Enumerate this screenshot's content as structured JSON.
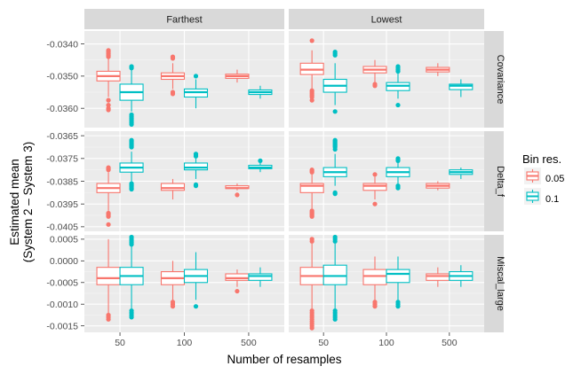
{
  "colors": {
    "bin_0_05": "#F8766D",
    "bin_0_1": "#00BFC4"
  },
  "chart_data": {
    "type": "boxplot",
    "x_title": "Number of resamples",
    "y_title_lines": [
      "Estimated mean",
      "(System 2 – System 3)"
    ],
    "categories": [
      "50",
      "100",
      "500"
    ],
    "columns": [
      "Farthest",
      "Lowest"
    ],
    "legend": {
      "title": "Bin res.",
      "position": "right",
      "entries": [
        {
          "label": "0.05",
          "color": "#F8766D"
        },
        {
          "label": "0.1",
          "color": "#00BFC4"
        }
      ]
    },
    "rows": [
      {
        "label": "Covariance",
        "y_range": [
          -0.0366,
          -0.0336
        ],
        "ticks": [
          -0.034,
          -0.035,
          -0.036
        ],
        "tick_labels": [
          "-0.0340",
          "-0.0350",
          "-0.0360"
        ],
        "panels": {
          "Farthest": {
            "0.05": [
              {
                "q1": -0.03515,
                "median": -0.035,
                "q3": -0.03485,
                "lo": -0.03565,
                "hi": -0.03445,
                "outliers": [
                  -0.0342,
                  -0.03425,
                  -0.0343,
                  -0.03435,
                  -0.0344,
                  -0.03575,
                  -0.0359,
                  -0.036,
                  -0.03605
                ]
              },
              {
                "q1": -0.0351,
                "median": -0.035,
                "q3": -0.0349,
                "lo": -0.0354,
                "hi": -0.0346,
                "outliers": [
                  -0.0344,
                  -0.03445,
                  -0.0355,
                  -0.03555
                ]
              },
              {
                "q1": -0.03507,
                "median": -0.035,
                "q3": -0.03494,
                "lo": -0.0352,
                "hi": -0.0348,
                "outliers": []
              }
            ],
            "0.1": [
              {
                "q1": -0.03575,
                "median": -0.0355,
                "q3": -0.03525,
                "lo": -0.0361,
                "hi": -0.0348,
                "outliers": [
                  -0.0347,
                  -0.03475,
                  -0.0362,
                  -0.03625,
                  -0.0363,
                  -0.03635,
                  -0.0364,
                  -0.03645,
                  -0.0365
                ]
              },
              {
                "q1": -0.03565,
                "median": -0.0355,
                "q3": -0.0354,
                "lo": -0.036,
                "hi": -0.0351,
                "outliers": [
                  -0.035
                ]
              },
              {
                "q1": -0.03557,
                "median": -0.0355,
                "q3": -0.03543,
                "lo": -0.0357,
                "hi": -0.0353,
                "outliers": []
              }
            ]
          },
          "Lowest": {
            "0.05": [
              {
                "q1": -0.03495,
                "median": -0.0348,
                "q3": -0.0346,
                "lo": -0.0354,
                "hi": -0.0342,
                "outliers": [
                  -0.0339,
                  -0.03545,
                  -0.0355,
                  -0.03555,
                  -0.0356,
                  -0.03565,
                  -0.03575
                ]
              },
              {
                "q1": -0.0349,
                "median": -0.0348,
                "q3": -0.0347,
                "lo": -0.0352,
                "hi": -0.0345,
                "outliers": [
                  -0.03525,
                  -0.0353
                ]
              },
              {
                "q1": -0.03487,
                "median": -0.0348,
                "q3": -0.03473,
                "lo": -0.035,
                "hi": -0.0346,
                "outliers": []
              }
            ],
            "0.1": [
              {
                "q1": -0.0355,
                "median": -0.0353,
                "q3": -0.0351,
                "lo": -0.0359,
                "hi": -0.0346,
                "outliers": [
                  -0.03425,
                  -0.0343,
                  -0.03435,
                  -0.0361
                ]
              },
              {
                "q1": -0.03545,
                "median": -0.0353,
                "q3": -0.0352,
                "lo": -0.0357,
                "hi": -0.0349,
                "outliers": [
                  -0.0347,
                  -0.03475,
                  -0.0348,
                  -0.03485,
                  -0.03485,
                  -0.0359
                ]
              },
              {
                "q1": -0.03542,
                "median": -0.0353,
                "q3": -0.03525,
                "lo": -0.03565,
                "hi": -0.0351,
                "outliers": []
              }
            ]
          }
        }
      },
      {
        "label": "Delta_f",
        "y_range": [
          -0.0407,
          -0.0363
        ],
        "ticks": [
          -0.0365,
          -0.0375,
          -0.0385,
          -0.0395,
          -0.0405
        ],
        "tick_labels": [
          "-0.0365",
          "-0.0375",
          "-0.0385",
          "-0.0395",
          "-0.0405"
        ],
        "panels": {
          "Farthest": {
            "0.05": [
              {
                "q1": -0.039,
                "median": -0.0388,
                "q3": -0.0386,
                "lo": -0.0398,
                "hi": -0.0381,
                "outliers": [
                  -0.038,
                  -0.03795,
                  -0.0379,
                  -0.0399,
                  -0.03995,
                  -0.04,
                  -0.04005,
                  -0.0404
                ]
              },
              {
                "q1": -0.0389,
                "median": -0.0388,
                "q3": -0.0386,
                "lo": -0.0393,
                "hi": -0.0384,
                "outliers": []
              },
              {
                "q1": -0.03882,
                "median": -0.0388,
                "q3": -0.0387,
                "lo": -0.0389,
                "hi": -0.0386,
                "outliers": [
                  -0.0391
                ]
              }
            ],
            "0.1": [
              {
                "q1": -0.0381,
                "median": -0.0379,
                "q3": -0.0377,
                "lo": -0.0385,
                "hi": -0.0372,
                "outliers": [
                  -0.0367,
                  -0.03675,
                  -0.0368,
                  -0.03685,
                  -0.0369,
                  -0.03695,
                  -0.037,
                  -0.0386,
                  -0.03865,
                  -0.0387,
                  -0.03875,
                  -0.0388,
                  -0.03885
                ]
              },
              {
                "q1": -0.038,
                "median": -0.0379,
                "q3": -0.0377,
                "lo": -0.0384,
                "hi": -0.0375,
                "outliers": [
                  -0.0373,
                  -0.03735,
                  -0.0374,
                  -0.03865,
                  -0.0387
                ]
              },
              {
                "q1": -0.03795,
                "median": -0.0379,
                "q3": -0.0378,
                "lo": -0.0381,
                "hi": -0.0377,
                "outliers": [
                  -0.0376
                ]
              }
            ]
          },
          "Lowest": {
            "0.05": [
              {
                "q1": -0.039,
                "median": -0.0387,
                "q3": -0.0386,
                "lo": -0.0397,
                "hi": -0.0382,
                "outliers": [
                  -0.038,
                  -0.03805,
                  -0.0381,
                  -0.0398,
                  -0.03985,
                  -0.0399,
                  -0.03995,
                  -0.04,
                  -0.04005
                ]
              },
              {
                "q1": -0.0389,
                "median": -0.0387,
                "q3": -0.0386,
                "lo": -0.0393,
                "hi": -0.0383,
                "outliers": [
                  -0.0382,
                  -0.0395
                ]
              },
              {
                "q1": -0.0388,
                "median": -0.0387,
                "q3": -0.0386,
                "lo": -0.0389,
                "hi": -0.0385,
                "outliers": []
              }
            ],
            "0.1": [
              {
                "q1": -0.0383,
                "median": -0.0381,
                "q3": -0.0379,
                "lo": -0.0387,
                "hi": -0.0373,
                "outliers": [
                  -0.0367,
                  -0.03675,
                  -0.0368,
                  -0.03685,
                  -0.0369,
                  -0.03695,
                  -0.037,
                  -0.0371,
                  -0.039,
                  -0.03905
                ]
              },
              {
                "q1": -0.0383,
                "median": -0.0381,
                "q3": -0.0379,
                "lo": -0.0386,
                "hi": -0.0377,
                "outliers": [
                  -0.0375,
                  -0.03755,
                  -0.0376,
                  -0.0387,
                  -0.03875,
                  -0.0388
                ]
              },
              {
                "q1": -0.0382,
                "median": -0.0381,
                "q3": -0.038,
                "lo": -0.0384,
                "hi": -0.0379,
                "outliers": []
              }
            ]
          }
        }
      },
      {
        "label": "Miscal_large",
        "y_range": [
          -0.00165,
          0.0006
        ],
        "ticks": [
          0.0005,
          0.0,
          -0.0005,
          -0.001,
          -0.0015
        ],
        "tick_labels": [
          "0.0005",
          "0.0000",
          "-0.0005",
          "-0.0010",
          "-0.0015"
        ],
        "panels": {
          "Farthest": {
            "0.05": [
              {
                "q1": -0.00055,
                "median": -0.0004,
                "q3": -0.00015,
                "lo": -0.0012,
                "hi": 0.0005,
                "outliers": [
                  -0.00125,
                  -0.0013,
                  -0.00135
                ]
              },
              {
                "q1": -0.00055,
                "median": -0.0004,
                "q3": -0.00025,
                "lo": -0.0009,
                "hi": 0.0,
                "outliers": [
                  -0.00095,
                  -0.001,
                  -0.00105
                ]
              },
              {
                "q1": -0.00045,
                "median": -0.0004,
                "q3": -0.0003,
                "lo": -0.0006,
                "hi": -0.0002,
                "outliers": [
                  -0.0007
                ]
              }
            ],
            "0.1": [
              {
                "q1": -0.00055,
                "median": -0.00035,
                "q3": -0.00015,
                "lo": -0.0011,
                "hi": 0.00035,
                "outliers": [
                  0.00038,
                  0.00042,
                  0.00046,
                  0.0005,
                  0.00055,
                  -0.00115,
                  -0.0012,
                  -0.00125,
                  -0.0013
                ]
              },
              {
                "q1": -0.0005,
                "median": -0.00035,
                "q3": -0.0002,
                "lo": -0.0009,
                "hi": 0.0002,
                "outliers": [
                  -0.00105
                ]
              },
              {
                "q1": -0.00045,
                "median": -0.00035,
                "q3": -0.0003,
                "lo": -0.0006,
                "hi": -0.00015,
                "outliers": []
              }
            ]
          },
          "Lowest": {
            "0.05": [
              {
                "q1": -0.00055,
                "median": -0.00035,
                "q3": -0.00015,
                "lo": -0.0011,
                "hi": 0.0004,
                "outliers": [
                  0.00045,
                  0.0005,
                  -0.00115,
                  -0.0012,
                  -0.00125,
                  -0.0013,
                  -0.00135,
                  -0.0014,
                  -0.00145,
                  -0.0015,
                  -0.00155
                ]
              },
              {
                "q1": -0.00055,
                "median": -0.00035,
                "q3": -0.0002,
                "lo": -0.0009,
                "hi": 0.0001,
                "outliers": [
                  -0.00095,
                  -0.001,
                  -0.00105
                ]
              },
              {
                "q1": -0.00045,
                "median": -0.00035,
                "q3": -0.0003,
                "lo": -0.0006,
                "hi": -0.00015,
                "outliers": []
              }
            ],
            "0.1": [
              {
                "q1": -0.00055,
                "median": -0.00035,
                "q3": -0.0001,
                "lo": -0.0011,
                "hi": 0.0004,
                "outliers": [
                  0.00045,
                  0.0005,
                  0.00055,
                  -0.00115,
                  -0.0012,
                  -0.00125,
                  -0.0013,
                  -0.00135
                ]
              },
              {
                "q1": -0.0005,
                "median": -0.0003,
                "q3": -0.0002,
                "lo": -0.0009,
                "hi": 0.0001,
                "outliers": [
                  -0.00095,
                  -0.001,
                  -0.00105
                ]
              },
              {
                "q1": -0.00045,
                "median": -0.00035,
                "q3": -0.00025,
                "lo": -0.0006,
                "hi": -0.0001,
                "outliers": []
              }
            ]
          }
        }
      }
    ]
  }
}
